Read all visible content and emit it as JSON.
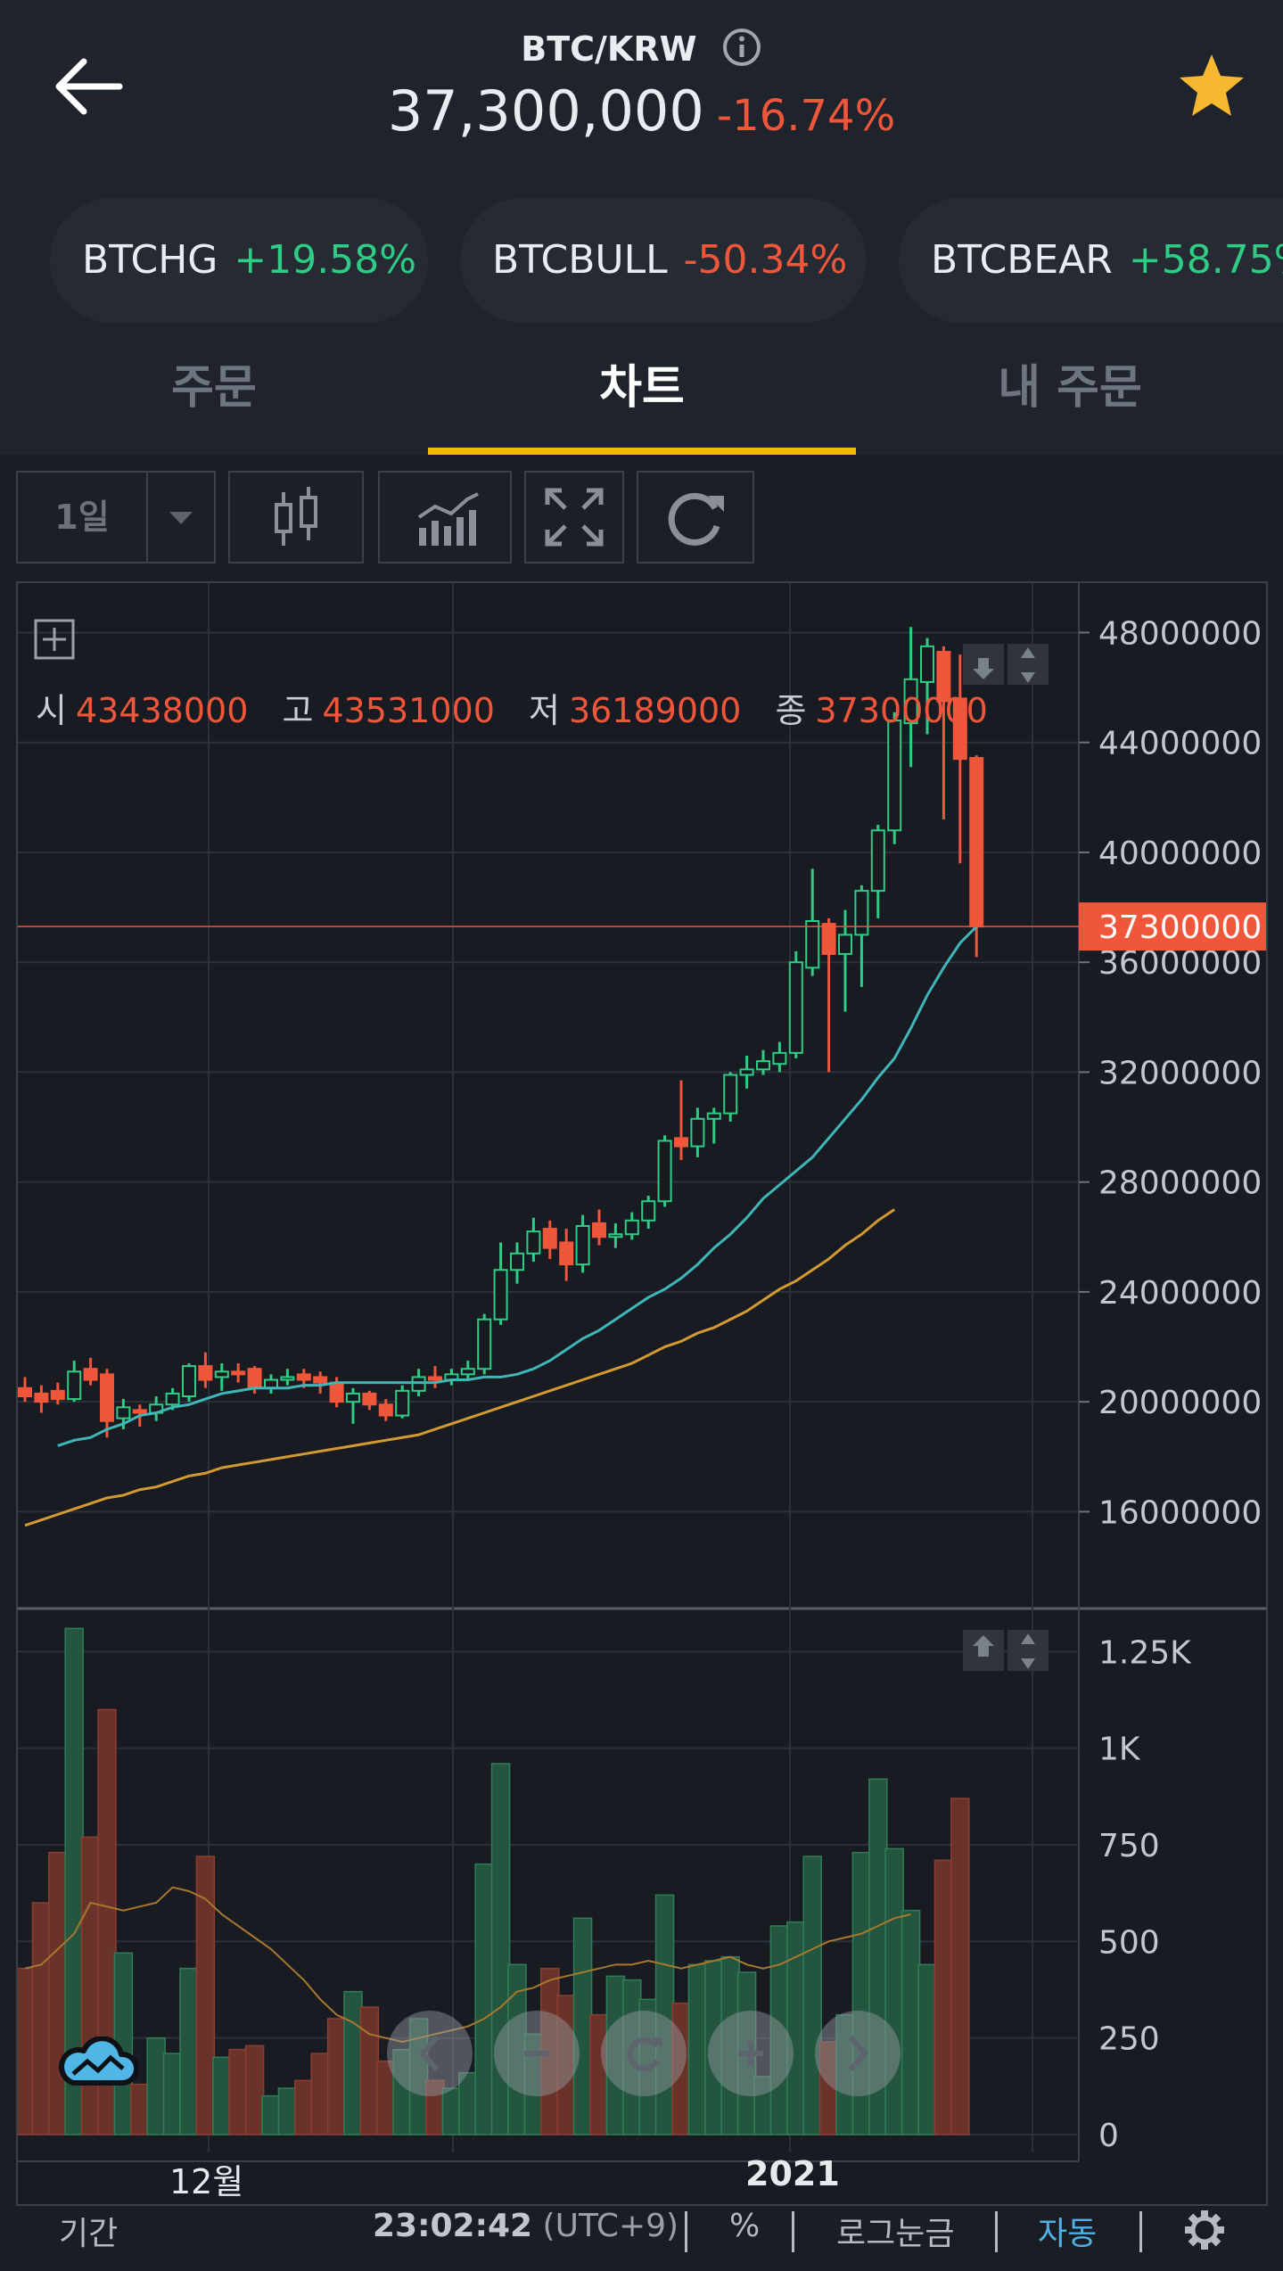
{
  "header": {
    "pair": "BTC/KRW",
    "price": "37,300,000",
    "change": "-16.74%"
  },
  "chips": [
    {
      "name": "BTCHG",
      "change": "+19.58%",
      "dir": "up"
    },
    {
      "name": "BTCBULL",
      "change": "-50.34%",
      "dir": "down"
    },
    {
      "name": "BTCBEAR",
      "change": "+58.75%",
      "dir": "up"
    }
  ],
  "tabs": [
    "주문",
    "차트",
    "내 주문"
  ],
  "active_tab": 1,
  "toolbar": {
    "timeframe": "1일"
  },
  "ohlc": {
    "open_label": "시",
    "open": "43438000",
    "high_label": "고",
    "high": "43531000",
    "low_label": "저",
    "low": "36189000",
    "close_label": "종",
    "close": "37300000"
  },
  "colors": {
    "up": "#2ecc84",
    "down": "#f0563a",
    "accent": "#f5b70f",
    "ma_short": "#3fb6b8",
    "ma_long": "#d49a32"
  },
  "chart_data": {
    "type": "candlestick",
    "price_axis": {
      "ticks": [
        "48000000",
        "44000000",
        "40000000",
        "36000000",
        "32000000",
        "28000000",
        "24000000",
        "20000000",
        "16000000"
      ],
      "range": [
        12800000,
        49800000
      ],
      "current_label": "37300000",
      "current": 37300000
    },
    "volume_axis": {
      "ticks": [
        "1.25K",
        "1K",
        "750",
        "500",
        "250",
        "0"
      ],
      "range": [
        0,
        1320
      ]
    },
    "x_labels": [
      "12월",
      "2021"
    ],
    "candles": [
      [
        20500000,
        20200000,
        20900000,
        20000000
      ],
      [
        20300000,
        20000000,
        20600000,
        19600000
      ],
      [
        20400000,
        20100000,
        20700000,
        19900000
      ],
      [
        20100000,
        21100000,
        21500000,
        20000000
      ],
      [
        21200000,
        20800000,
        21600000,
        20600000
      ],
      [
        21000000,
        19300000,
        21200000,
        18700000
      ],
      [
        19400000,
        19800000,
        20100000,
        19000000
      ],
      [
        19700000,
        19600000,
        19900000,
        19100000
      ],
      [
        19600000,
        19900000,
        20200000,
        19300000
      ],
      [
        19900000,
        20300000,
        20500000,
        19700000
      ],
      [
        20200000,
        21300000,
        21400000,
        20000000
      ],
      [
        21300000,
        20800000,
        21800000,
        20500000
      ],
      [
        20900000,
        21100000,
        21400000,
        20400000
      ],
      [
        21100000,
        21000000,
        21400000,
        20700000
      ],
      [
        21200000,
        20500000,
        21300000,
        20300000
      ],
      [
        20500000,
        20800000,
        21000000,
        20300000
      ],
      [
        20800000,
        20900000,
        21200000,
        20600000
      ],
      [
        21000000,
        20800000,
        21200000,
        20500000
      ],
      [
        20900000,
        20700000,
        21100000,
        20300000
      ],
      [
        20700000,
        20000000,
        20900000,
        19800000
      ],
      [
        20000000,
        20300000,
        20500000,
        19200000
      ],
      [
        20300000,
        19900000,
        20400000,
        19700000
      ],
      [
        19900000,
        19500000,
        20100000,
        19300000
      ],
      [
        19500000,
        20400000,
        20600000,
        19400000
      ],
      [
        20400000,
        20900000,
        21200000,
        20200000
      ],
      [
        20900000,
        20800000,
        21300000,
        20500000
      ],
      [
        20800000,
        21000000,
        21200000,
        20600000
      ],
      [
        21000000,
        21200000,
        21500000,
        20800000
      ],
      [
        21200000,
        23000000,
        23200000,
        21000000
      ],
      [
        23000000,
        24800000,
        25800000,
        22800000
      ],
      [
        24800000,
        25400000,
        25800000,
        24300000
      ],
      [
        25400000,
        26200000,
        26700000,
        25100000
      ],
      [
        26300000,
        25600000,
        26600000,
        25200000
      ],
      [
        25800000,
        25000000,
        26300000,
        24400000
      ],
      [
        25000000,
        26400000,
        26800000,
        24700000
      ],
      [
        26500000,
        26000000,
        27000000,
        25700000
      ],
      [
        26000000,
        26100000,
        26500000,
        25600000
      ],
      [
        26100000,
        26600000,
        26900000,
        25900000
      ],
      [
        26600000,
        27300000,
        27500000,
        26300000
      ],
      [
        27300000,
        29500000,
        29700000,
        27100000
      ],
      [
        29600000,
        29300000,
        31700000,
        28800000
      ],
      [
        29300000,
        30300000,
        30700000,
        28900000
      ],
      [
        30300000,
        30500000,
        30700000,
        29400000
      ],
      [
        30500000,
        31900000,
        32000000,
        30200000
      ],
      [
        31900000,
        32100000,
        32600000,
        31400000
      ],
      [
        32100000,
        32400000,
        32800000,
        31900000
      ],
      [
        32300000,
        32700000,
        33100000,
        32000000
      ],
      [
        32700000,
        36000000,
        36400000,
        32500000
      ],
      [
        35800000,
        37500000,
        39400000,
        35500000
      ],
      [
        37400000,
        36300000,
        37600000,
        32000000
      ],
      [
        36300000,
        37000000,
        37900000,
        34200000
      ],
      [
        37000000,
        38600000,
        38800000,
        35100000
      ],
      [
        38600000,
        40800000,
        41000000,
        37600000
      ],
      [
        40800000,
        44800000,
        45100000,
        40300000
      ],
      [
        44700000,
        46300000,
        48200000,
        43100000
      ],
      [
        46200000,
        47500000,
        47800000,
        44300000
      ],
      [
        47300000,
        45500000,
        47500000,
        41200000
      ],
      [
        45600000,
        43400000,
        47200000,
        39600000
      ],
      [
        43438000,
        37300000,
        43531000,
        36189000
      ]
    ],
    "ma_short": [
      18400000,
      18600000,
      18700000,
      19000000,
      19200000,
      19500000,
      19600000,
      19800000,
      19900000,
      20100000,
      20300000,
      20400000,
      20500000,
      20500000,
      20500000,
      20600000,
      20600000,
      20700000,
      20700000,
      20700000,
      20700000,
      20700000,
      20700000,
      20700000,
      20800000,
      20800000,
      20900000,
      20900000,
      21000000,
      21200000,
      21500000,
      21900000,
      22300000,
      22600000,
      23000000,
      23400000,
      23800000,
      24100000,
      24500000,
      25000000,
      25600000,
      26100000,
      26700000,
      27400000,
      27900000,
      28400000,
      28900000,
      29600000,
      30300000,
      31000000,
      31800000,
      32500000,
      33600000,
      34800000,
      35800000,
      36700000,
      37300000
    ],
    "ma_long": [
      15500000,
      15700000,
      15900000,
      16100000,
      16300000,
      16500000,
      16600000,
      16800000,
      16900000,
      17100000,
      17300000,
      17400000,
      17600000,
      17700000,
      17800000,
      17900000,
      18000000,
      18100000,
      18200000,
      18300000,
      18400000,
      18500000,
      18600000,
      18700000,
      18800000,
      19000000,
      19200000,
      19400000,
      19600000,
      19800000,
      20000000,
      20200000,
      20400000,
      20600000,
      20800000,
      21000000,
      21200000,
      21400000,
      21700000,
      22000000,
      22200000,
      22500000,
      22700000,
      23000000,
      23300000,
      23700000,
      24100000,
      24400000,
      24800000,
      25200000,
      25700000,
      26100000,
      26600000,
      27000000
    ],
    "volumes": [
      430,
      600,
      730,
      1310,
      770,
      1100,
      470,
      130,
      250,
      210,
      430,
      720,
      200,
      220,
      230,
      100,
      120,
      140,
      210,
      300,
      370,
      330,
      190,
      220,
      300,
      140,
      120,
      160,
      700,
      960,
      440,
      260,
      430,
      360,
      560,
      310,
      410,
      400,
      350,
      620,
      340,
      440,
      450,
      460,
      420,
      150,
      540,
      550,
      720,
      240,
      310,
      730,
      920,
      740,
      580,
      440,
      710,
      870
    ],
    "volume_ma": [
      430,
      440,
      480,
      520,
      600,
      590,
      580,
      590,
      600,
      640,
      630,
      610,
      570,
      540,
      510,
      480,
      440,
      400,
      350,
      310,
      290,
      260,
      250,
      240,
      250,
      260,
      270,
      280,
      300,
      330,
      370,
      380,
      400,
      410,
      420,
      430,
      440,
      440,
      450,
      440,
      430,
      440,
      450,
      460,
      440,
      430,
      440,
      460,
      480,
      500,
      510,
      520,
      540,
      560,
      570
    ]
  }
}
